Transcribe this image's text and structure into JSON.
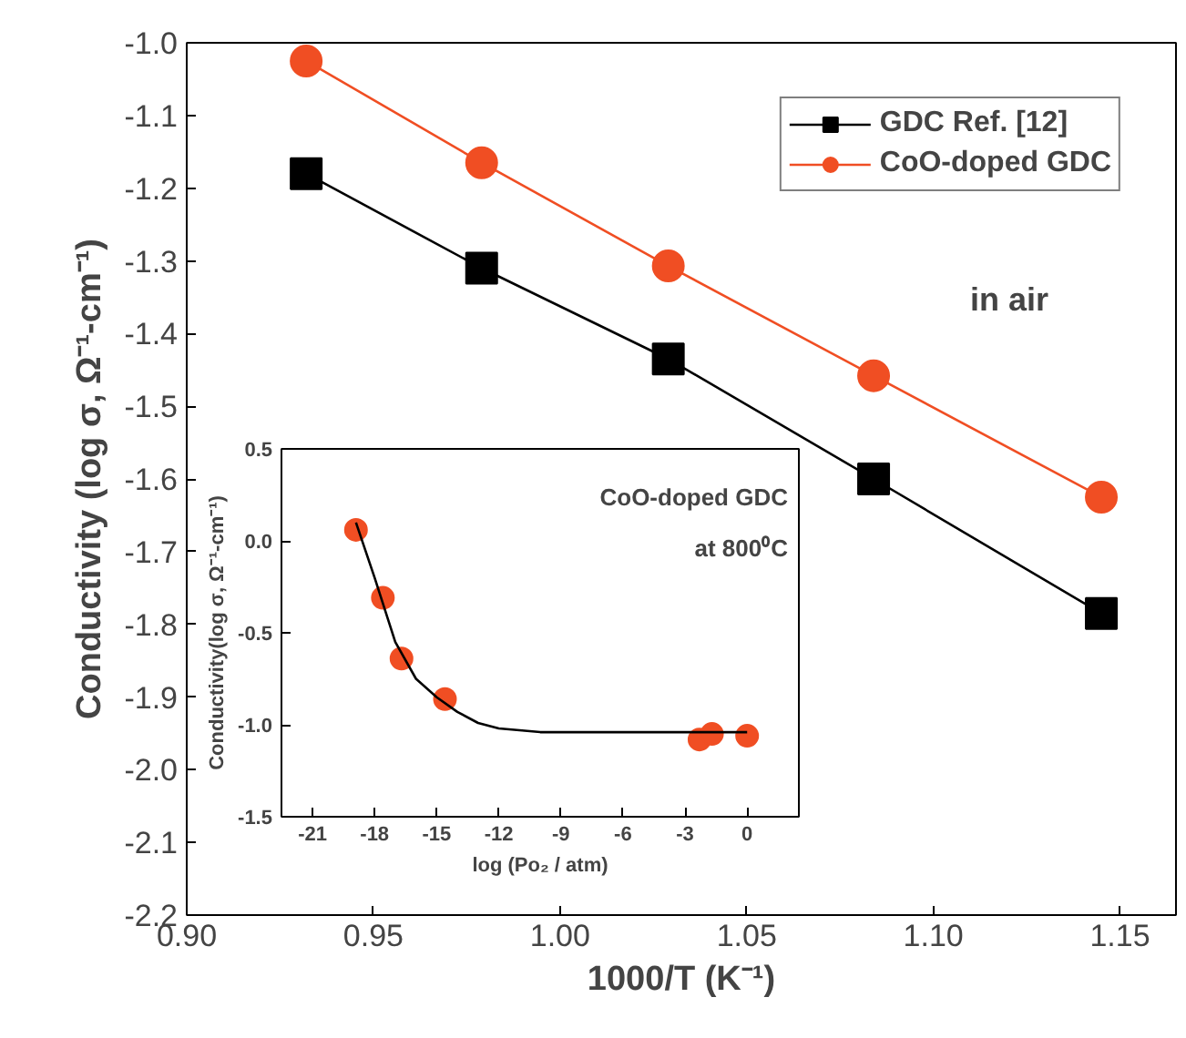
{
  "chart_data": [
    {
      "type": "line",
      "xlabel": "1000/T (K⁻¹)",
      "ylabel": "Conductivity (log σ, Ω⁻¹-cm⁻¹)",
      "x": [
        0.932,
        0.979,
        1.029,
        1.084,
        1.145
      ],
      "series": [
        {
          "name": "GDC Ref. [12]",
          "color": "#000000",
          "marker": "square",
          "values": [
            -1.18,
            -1.31,
            -1.435,
            -1.6,
            -1.785
          ]
        },
        {
          "name": "CoO-doped GDC",
          "color": "#f04e23",
          "marker": "circle",
          "values": [
            -1.025,
            -1.165,
            -1.307,
            -1.458,
            -1.625
          ]
        }
      ],
      "xlim": [
        0.9,
        1.165
      ],
      "ylim": [
        -2.2,
        -1.0
      ],
      "xticks": [
        {
          "value": 0.9,
          "label": "0.90"
        },
        {
          "value": 0.95,
          "label": "0.95"
        },
        {
          "value": 1.0,
          "label": "1.00"
        },
        {
          "value": 1.05,
          "label": "1.05"
        },
        {
          "value": 1.1,
          "label": "1.10"
        },
        {
          "value": 1.15,
          "label": "1.15"
        }
      ],
      "yticks": [
        {
          "value": -2.2,
          "label": "-2.2"
        },
        {
          "value": -2.1,
          "label": "-2.1"
        },
        {
          "value": -2.0,
          "label": "-2.0"
        },
        {
          "value": -1.9,
          "label": "-1.9"
        },
        {
          "value": -1.8,
          "label": "-1.8"
        },
        {
          "value": -1.7,
          "label": "-1.7"
        },
        {
          "value": -1.6,
          "label": "-1.6"
        },
        {
          "value": -1.5,
          "label": "-1.5"
        },
        {
          "value": -1.4,
          "label": "-1.4"
        },
        {
          "value": -1.3,
          "label": "-1.3"
        },
        {
          "value": -1.2,
          "label": "-1.2"
        },
        {
          "value": -1.1,
          "label": "-1.1"
        },
        {
          "value": -1.0,
          "label": "-1.0"
        }
      ],
      "annotations": [
        "in air"
      ],
      "legend": "top right",
      "grid": false,
      "line_style": "solid"
    },
    {
      "type": "scatter",
      "xlabel": "log (Po₂ / atm)",
      "ylabel": "Conductivity(log σ, Ω⁻¹-cm⁻¹)",
      "series": [
        {
          "type": "scatter",
          "color": "#f04e23",
          "marker": "circle",
          "x": [
            -18.9,
            -17.6,
            -16.7,
            -14.6,
            -2.3,
            -1.7,
            0
          ],
          "values": [
            0.06,
            -0.31,
            -0.64,
            -0.86,
            -1.08,
            -1.05,
            -1.06
          ]
        },
        {
          "type": "line",
          "color": "#000000",
          "marker": "none",
          "x": [
            -18.9,
            -18,
            -17,
            -16,
            -15,
            -14,
            -13,
            -12,
            -10,
            0
          ],
          "values": [
            0.1,
            -0.2,
            -0.55,
            -0.75,
            -0.85,
            -0.93,
            -0.99,
            -1.02,
            -1.04,
            -1.04
          ]
        }
      ],
      "xlim": [
        -22.5,
        2.5
      ],
      "ylim": [
        -1.5,
        0.5
      ],
      "xticks": [
        -21,
        -18,
        -15,
        -12,
        -9,
        -6,
        -3,
        0
      ],
      "yticks": [
        {
          "value": -1.5,
          "label": "-1.5"
        },
        {
          "value": -1.0,
          "label": "-1.0"
        },
        {
          "value": -0.5,
          "label": "-0.5"
        },
        {
          "value": 0.0,
          "label": "0.0"
        },
        {
          "value": 0.5,
          "label": "0.5"
        }
      ],
      "annotations": [
        "CoO-doped GDC",
        "at 800⁰C"
      ],
      "legend": false,
      "grid": false
    }
  ]
}
